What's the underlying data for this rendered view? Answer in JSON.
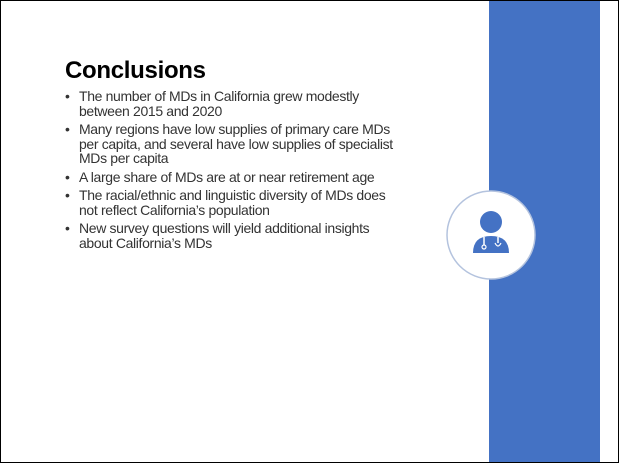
{
  "slide": {
    "title": "Conclusions",
    "bullets": [
      "The number of MDs in California grew modestly between 2015 and 2020",
      "Many regions have low supplies of primary care MDs per capita, and several have low supplies of specialist MDs per capita",
      "A large share of MDs are at or near retirement age",
      "The racial/ethnic and linguistic diversity of MDs does not reflect California’s population",
      "New survey questions will yield additional insights about California’s MDs"
    ]
  }
}
